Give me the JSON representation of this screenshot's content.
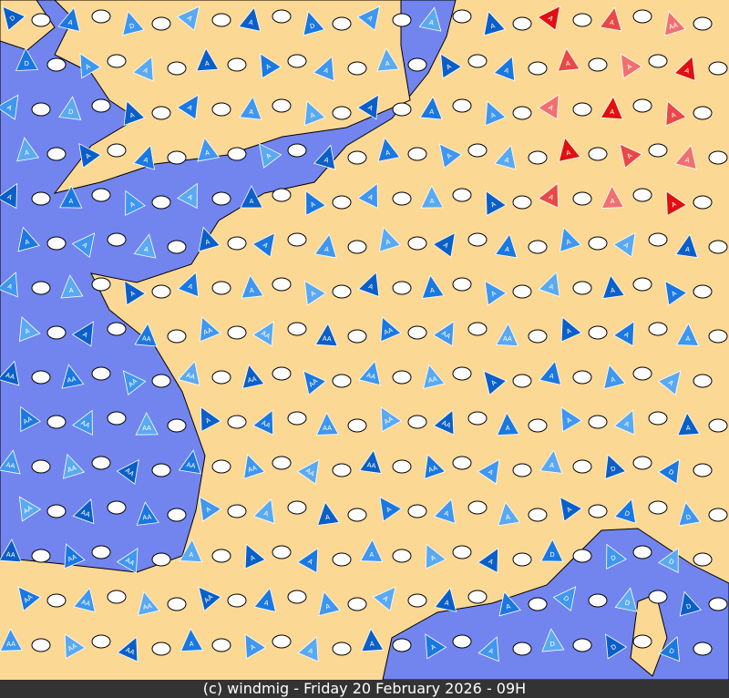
{
  "footer": "(c) windmig - Friday 20 February 2026 - 09H",
  "wind_markers": {
    "rows": [
      [
        "D",
        "A",
        "D",
        "A",
        "A",
        "D",
        "A",
        "A",
        "A",
        "A",
        "A",
        "AA"
      ],
      [
        "D",
        "A",
        "A",
        "A",
        "A",
        "A",
        "A",
        "A",
        "A",
        "A",
        "A",
        "A"
      ],
      [
        "A",
        "D",
        "A",
        "A",
        "A",
        "A",
        "A",
        "A",
        "A",
        "A",
        "A",
        "A"
      ],
      [
        "A",
        "A",
        "A",
        "A",
        "A",
        "A",
        "A",
        "A",
        "A",
        "A",
        "A",
        "A"
      ],
      [
        "A",
        "A",
        "A",
        "A",
        "A",
        "A",
        "A",
        "A",
        "A",
        "A",
        "A",
        "A"
      ],
      [
        "A",
        "A",
        "A",
        "A",
        "A",
        "A",
        "A",
        "A",
        "A",
        "A",
        "A",
        "A"
      ],
      [
        "A",
        "A",
        "A",
        "A",
        "A",
        "A",
        "A",
        "A",
        "A",
        "A",
        "A",
        "A"
      ],
      [
        "A",
        "A",
        "AA",
        "AA",
        "AA",
        "AA",
        "AA",
        "AA",
        "AA",
        "A",
        "A",
        "A"
      ],
      [
        "AA",
        "AA",
        "AA",
        "AA",
        "AA",
        "AA",
        "AA",
        "AA",
        "A",
        "A",
        "A",
        "A"
      ],
      [
        "AA",
        "AA",
        "AA",
        "A",
        "AA",
        "AA",
        "AA",
        "AA",
        "A",
        "A",
        "A",
        "A"
      ],
      [
        "AA",
        "AA",
        "AA",
        "AA",
        "AA",
        "AA",
        "AA",
        "AA",
        "A",
        "A",
        "D",
        "D"
      ],
      [
        "AA",
        "AA",
        "AA",
        "A",
        "A",
        "A",
        "A",
        "A",
        "A",
        "A",
        "D",
        "D"
      ],
      [
        "AA",
        "AA",
        "AA",
        "A",
        "A",
        "A",
        "A",
        "A",
        "A",
        "D",
        "D",
        "D"
      ],
      [
        "AA",
        "AA",
        "AA",
        "AA",
        "A",
        "A",
        "A",
        "A",
        "A",
        "D",
        "D",
        "D"
      ],
      [
        "AA",
        "AA",
        "AA",
        "A",
        "A",
        "A",
        "A",
        "A",
        "A",
        "D",
        "D",
        "D"
      ]
    ]
  }
}
